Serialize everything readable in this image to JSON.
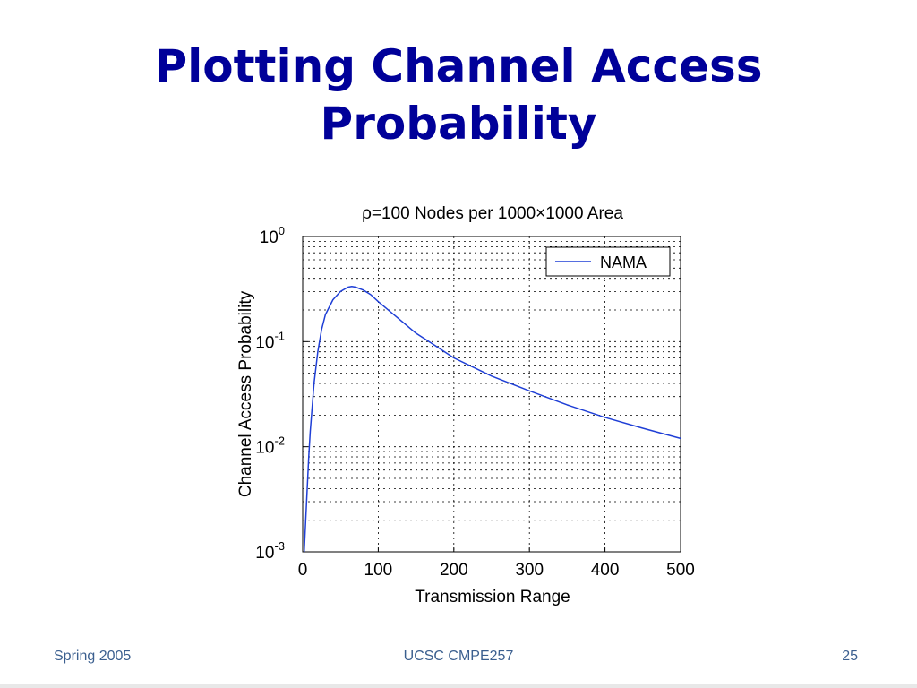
{
  "slide": {
    "title_line1": "Plotting Channel Access",
    "title_line2": "Probability"
  },
  "footer": {
    "left": "Spring 2005",
    "center": "UCSC CMPE257",
    "right": "25"
  },
  "chart_data": {
    "type": "line",
    "title_parts": [
      "ρ",
      "=100 Nodes per 1000",
      "×",
      "1000 Area"
    ],
    "xlabel": "Transmission Range",
    "ylabel": "Channel Access Probability",
    "xlim": [
      0,
      500
    ],
    "ylim": [
      0.001,
      1
    ],
    "yscale": "log",
    "grid": true,
    "legend_position": "top-right",
    "x_ticks": [
      0,
      100,
      200,
      300,
      400,
      500
    ],
    "y_ticks": [
      {
        "base": "10",
        "exp": "-3",
        "value": 0.001
      },
      {
        "base": "10",
        "exp": "-2",
        "value": 0.01
      },
      {
        "base": "10",
        "exp": "-1",
        "value": 0.1
      },
      {
        "base": "10",
        "exp": "0",
        "value": 1
      }
    ],
    "line_color": "#1f3fd6",
    "series": [
      {
        "name": "NAMA",
        "x": [
          2,
          4,
          6,
          8,
          10,
          15,
          20,
          25,
          30,
          40,
          50,
          60,
          65,
          70,
          80,
          90,
          100,
          125,
          150,
          175,
          200,
          250,
          300,
          350,
          400,
          450,
          500
        ],
        "y": [
          0.001,
          0.002,
          0.004,
          0.008,
          0.014,
          0.04,
          0.08,
          0.13,
          0.18,
          0.25,
          0.3,
          0.33,
          0.335,
          0.33,
          0.31,
          0.28,
          0.24,
          0.17,
          0.12,
          0.092,
          0.07,
          0.047,
          0.034,
          0.025,
          0.019,
          0.015,
          0.012
        ]
      }
    ]
  }
}
